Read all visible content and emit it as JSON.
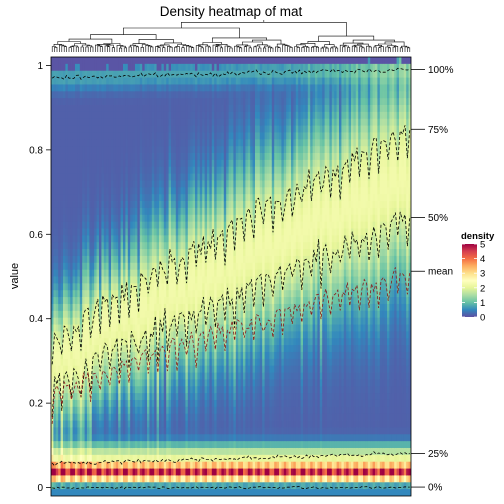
{
  "chart_data": {
    "type": "heatmap",
    "title": "Density heatmap of mat",
    "ylabel": "value",
    "ylim": [
      -0.02,
      1.02
    ],
    "yticks": [
      0,
      0.2,
      0.4,
      0.6,
      0.8,
      1
    ],
    "ytick_labels": [
      "0",
      "0.2",
      "0.4",
      "0.6",
      "0.8",
      "1"
    ],
    "n_columns": 150,
    "column_dendrogram": true,
    "colorscale": {
      "title": "density",
      "min": 0,
      "max": 5,
      "ticks": [
        0,
        1,
        2,
        3,
        4,
        5
      ],
      "tick_labels": [
        "0",
        "1",
        "2",
        "3",
        "4",
        "5"
      ],
      "colors": [
        "#5E4FA2",
        "#3288BD",
        "#66C2A5",
        "#ABDDA4",
        "#E6F598",
        "#FFFFBF",
        "#FEE08B",
        "#FDAE61",
        "#F46D43",
        "#D53E4F",
        "#9E0142"
      ]
    },
    "quantile_lines": [
      {
        "label": "100%",
        "start": 0.97,
        "end": 0.99,
        "noise": 0.008,
        "color": "#000000"
      },
      {
        "label": "75%",
        "start": 0.34,
        "end": 0.85,
        "noise": 0.04,
        "color": "#000000"
      },
      {
        "label": "50%",
        "start": 0.24,
        "end": 0.64,
        "noise": 0.04,
        "color": "#000000"
      },
      {
        "label": "mean",
        "start": 0.22,
        "end": 0.51,
        "noise": 0.03,
        "color": "#8B1A1A"
      },
      {
        "label": "25%",
        "start": 0.055,
        "end": 0.08,
        "noise": 0.008,
        "color": "#000000"
      },
      {
        "label": "0%",
        "start": 0.0,
        "end": 0.0,
        "noise": 0.004,
        "color": "#000000"
      }
    ]
  }
}
